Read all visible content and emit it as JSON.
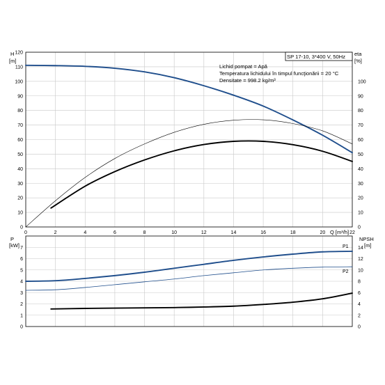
{
  "header": {
    "model_label": "SP 17-10, 3*400 V, 50Hz",
    "info_lines": [
      "Lichid pompat = Apă",
      "Temperatura lichidului în timpul funcţionării = 20 °C",
      "Densitate = 998.2 kg/m³"
    ]
  },
  "chart_data": [
    {
      "type": "line",
      "panel": "head-efficiency",
      "x_label": "Q [m³/h]",
      "x_ticks": [
        "0",
        "2",
        "4",
        "6",
        "8",
        "10",
        "12",
        "14",
        "16",
        "18",
        "20",
        "22"
      ],
      "xlim": [
        0,
        22
      ],
      "left_axis": {
        "label_line1": "H",
        "label_line2": "[m]",
        "ylim": [
          0,
          120
        ],
        "ticks": [
          "0",
          "10",
          "20",
          "30",
          "40",
          "50",
          "60",
          "70",
          "80",
          "90",
          "100",
          "110",
          "120"
        ]
      },
      "right_axis": {
        "label_line1": "eta",
        "label_line2": "[%]",
        "ylim": [
          0,
          120
        ],
        "ticks": [
          "0",
          "10",
          "20",
          "30",
          "40",
          "50",
          "60",
          "70",
          "80",
          "90",
          "100"
        ]
      },
      "grid": true,
      "series": [
        {
          "name": "",
          "axis": "left",
          "style": "blue-thick",
          "color": "#1f4e8c",
          "x": [
            0,
            2,
            4,
            6,
            8,
            10,
            12,
            14,
            16,
            18,
            20,
            22
          ],
          "y": [
            111,
            110.8,
            110.3,
            109,
            106.5,
            102.5,
            97,
            90.5,
            83,
            73.5,
            63,
            51
          ]
        },
        {
          "name": "",
          "axis": "left",
          "style": "black-thin",
          "color": "#000000",
          "x": [
            0,
            2,
            4,
            6,
            8,
            10,
            12,
            14,
            16,
            18,
            20,
            22
          ],
          "y": [
            0,
            18,
            34,
            47,
            57,
            65,
            70.5,
            73.3,
            73.6,
            71,
            66,
            57
          ]
        },
        {
          "name": "",
          "axis": "left",
          "style": "black-thick",
          "color": "#000000",
          "x": [
            1.7,
            4,
            6,
            8,
            10,
            12,
            14,
            16,
            18,
            20,
            22
          ],
          "y": [
            13,
            28,
            38,
            46,
            52.3,
            56.6,
            58.8,
            58.8,
            56.5,
            52,
            45
          ]
        }
      ]
    },
    {
      "type": "line",
      "panel": "power-npsh",
      "xlim": [
        0,
        22
      ],
      "left_axis": {
        "label_line1": "P",
        "label_line2": "[kW]",
        "ylim": [
          0,
          8
        ],
        "ticks": [
          "0",
          "1",
          "2",
          "3",
          "4",
          "5",
          "6",
          "7"
        ]
      },
      "right_axis": {
        "label_line1": "NPSH",
        "label_line2": "[m]",
        "ylim": [
          0,
          16
        ],
        "ticks": [
          "0",
          "2",
          "4",
          "6",
          "8",
          "10",
          "12",
          "14"
        ]
      },
      "grid": true,
      "series": [
        {
          "name": "P1",
          "axis": "left",
          "style": "blue-thick",
          "color": "#1f4e8c",
          "x": [
            0,
            2,
            4,
            6,
            8,
            10,
            12,
            14,
            16,
            18,
            20,
            22
          ],
          "y": [
            4.0,
            4.05,
            4.25,
            4.5,
            4.8,
            5.15,
            5.5,
            5.85,
            6.15,
            6.4,
            6.6,
            6.65
          ]
        },
        {
          "name": "P2",
          "axis": "left",
          "style": "blue-thin",
          "color": "#1f4e8c",
          "x": [
            0,
            2,
            4,
            6,
            8,
            10,
            12,
            14,
            16,
            18,
            20,
            22
          ],
          "y": [
            3.2,
            3.25,
            3.45,
            3.7,
            3.95,
            4.2,
            4.5,
            4.75,
            5.0,
            5.15,
            5.25,
            5.28
          ]
        },
        {
          "name": "",
          "axis": "right",
          "style": "black-thick",
          "color": "#000000",
          "x": [
            1.7,
            4,
            6,
            8,
            10,
            12,
            14,
            16,
            18,
            20,
            22
          ],
          "y": [
            3.1,
            3.2,
            3.25,
            3.3,
            3.35,
            3.45,
            3.6,
            3.9,
            4.3,
            4.9,
            5.9
          ]
        }
      ]
    }
  ]
}
